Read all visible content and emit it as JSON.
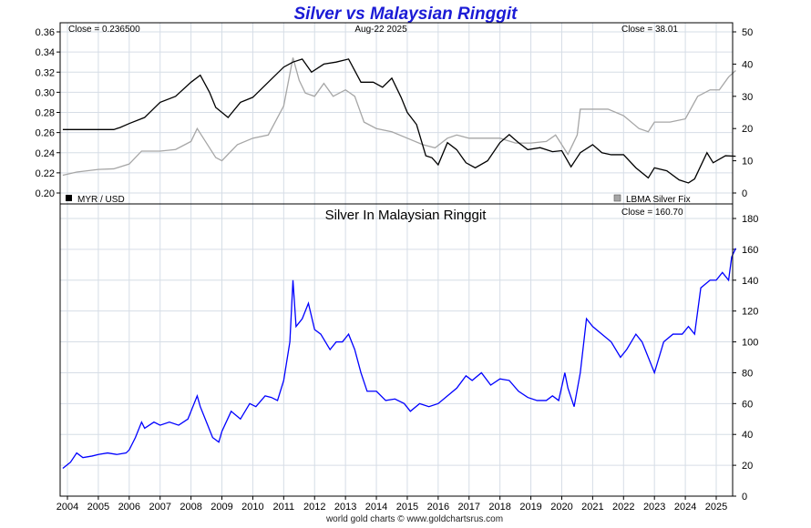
{
  "title": "Silver vs Malaysian Ringgit",
  "footer": "world gold charts © www.goldchartsrus.com",
  "colors": {
    "title": "#1b1bd6",
    "myr": "#000000",
    "silver_usd": "#a6a6a6",
    "silver_myr": "#0000ff",
    "grid": "#d6dde6"
  },
  "chart_data": [
    {
      "type": "line",
      "title": "",
      "date_label": "Aug-22  2025",
      "close_left": "Close = 0.236500",
      "close_right": "Close = 38.01",
      "x_ticks": [
        "2004",
        "2005",
        "2006",
        "2007",
        "2008",
        "2009",
        "2010",
        "2011",
        "2012",
        "2013",
        "2014",
        "2015",
        "2016",
        "2017",
        "2018",
        "2019",
        "2020",
        "2021",
        "2022",
        "2023",
        "2024",
        "2025"
      ],
      "y_left": {
        "ticks": [
          "0.20",
          "0.22",
          "0.24",
          "0.26",
          "0.28",
          "0.30",
          "0.32",
          "0.34",
          "0.36"
        ],
        "range": [
          0.2,
          0.365
        ]
      },
      "y_right": {
        "ticks": [
          "0",
          "10",
          "20",
          "30",
          "40",
          "50"
        ],
        "range": [
          -2,
          51
        ]
      },
      "grid": true,
      "legend": {
        "left": "MYR / USD",
        "right": "LBMA Silver Fix"
      },
      "series": [
        {
          "name": "MYR / USD",
          "axis": "left",
          "x": [
            2003.85,
            2005.0,
            2005.5,
            2005.7,
            2006.0,
            2006.5,
            2007.0,
            2007.5,
            2008.0,
            2008.3,
            2008.6,
            2008.8,
            2009.2,
            2009.6,
            2010.0,
            2010.5,
            2011.0,
            2011.3,
            2011.6,
            2011.9,
            2012.3,
            2012.7,
            2013.1,
            2013.5,
            2013.9,
            2014.2,
            2014.5,
            2014.8,
            2015.0,
            2015.3,
            2015.6,
            2015.8,
            2016.0,
            2016.3,
            2016.6,
            2016.9,
            2017.2,
            2017.6,
            2018.0,
            2018.3,
            2018.6,
            2018.9,
            2019.3,
            2019.7,
            2020.0,
            2020.3,
            2020.6,
            2021.0,
            2021.3,
            2021.6,
            2022.0,
            2022.4,
            2022.8,
            2023.0,
            2023.4,
            2023.8,
            2024.1,
            2024.3,
            2024.7,
            2024.9,
            2025.3,
            2025.63
          ],
          "y": [
            0.263,
            0.263,
            0.263,
            0.265,
            0.269,
            0.275,
            0.29,
            0.296,
            0.31,
            0.317,
            0.3,
            0.285,
            0.275,
            0.29,
            0.295,
            0.31,
            0.325,
            0.33,
            0.333,
            0.32,
            0.328,
            0.33,
            0.333,
            0.31,
            0.31,
            0.305,
            0.314,
            0.295,
            0.28,
            0.268,
            0.237,
            0.235,
            0.228,
            0.25,
            0.243,
            0.23,
            0.225,
            0.232,
            0.25,
            0.258,
            0.25,
            0.243,
            0.245,
            0.241,
            0.242,
            0.226,
            0.24,
            0.248,
            0.24,
            0.238,
            0.238,
            0.225,
            0.215,
            0.225,
            0.222,
            0.213,
            0.21,
            0.214,
            0.24,
            0.23,
            0.237,
            0.2365
          ]
        },
        {
          "name": "LBMA Silver Fix",
          "axis": "right",
          "x": [
            2003.85,
            2004.3,
            2005.0,
            2005.5,
            2006.0,
            2006.4,
            2007.0,
            2007.5,
            2008.0,
            2008.2,
            2008.8,
            2009.0,
            2009.5,
            2010.0,
            2010.5,
            2011.0,
            2011.3,
            2011.5,
            2011.7,
            2012.0,
            2012.3,
            2012.6,
            2013.0,
            2013.3,
            2013.6,
            2014.0,
            2014.5,
            2015.0,
            2015.5,
            2015.9,
            2016.3,
            2016.6,
            2017.0,
            2017.5,
            2018.0,
            2018.5,
            2019.0,
            2019.5,
            2019.8,
            2020.2,
            2020.5,
            2020.6,
            2021.0,
            2021.5,
            2022.0,
            2022.5,
            2022.8,
            2023.0,
            2023.5,
            2024.0,
            2024.4,
            2024.8,
            2025.1,
            2025.4,
            2025.63
          ],
          "y": [
            5.5,
            6.5,
            7.3,
            7.5,
            9,
            13,
            13,
            13.5,
            16,
            20,
            11,
            10,
            15,
            17,
            18,
            27,
            42,
            35,
            31,
            30,
            34,
            30,
            32,
            30,
            22,
            20,
            19,
            17,
            15,
            14,
            17,
            18,
            17,
            17,
            17,
            15.5,
            15.5,
            16,
            18,
            12,
            18,
            26,
            26,
            26,
            24,
            20,
            19,
            22,
            22,
            23,
            30,
            32,
            32,
            36,
            38
          ]
        },
        {
          "name": "",
          "axis": "right",
          "x": [
            2003.85,
            2004.3,
            2005.0,
            2005.5,
            2006.0,
            2006.3,
            2006.8,
            2007.0,
            2007.5,
            2008.0,
            2008.3,
            2008.8,
            2009.0,
            2009.5,
            2010.0,
            2010.5,
            2011.0,
            2011.3,
            2011.5,
            2011.8,
            2012.0,
            2012.5,
            2013.0,
            2013.5,
            2014.0,
            2014.5,
            2015.0,
            2015.5,
            2016.0,
            2016.5,
            2017.0,
            2017.5,
            2018.0,
            2018.5,
            2019.0,
            2019.5,
            2019.8,
            2020.2,
            2020.5,
            2020.7,
            2021.0,
            2021.3,
            2021.6,
            2022.0,
            2022.4,
            2022.8,
            2023.0,
            2023.5,
            2024.0,
            2024.4,
            2024.8,
            2025.1,
            2025.4,
            2025.63
          ],
          "y": [
            5.5,
            6.5,
            7.3,
            7.5,
            9,
            13,
            12,
            13,
            13.5,
            16,
            20,
            11,
            10,
            15,
            17,
            18,
            27,
            42,
            35,
            31,
            30,
            34,
            30,
            25,
            22,
            19,
            17,
            15,
            14,
            17,
            18,
            17,
            17,
            15.5,
            15.5,
            16,
            18,
            12,
            18,
            26,
            26,
            27,
            24,
            25,
            24,
            19,
            22,
            22,
            23,
            30,
            32,
            32,
            36,
            38
          ]
        }
      ]
    },
    {
      "type": "line",
      "title": "Silver In Malaysian Ringgit",
      "close": "Close = 160.70",
      "x_ticks": [
        "2004",
        "2005",
        "2006",
        "2007",
        "2008",
        "2009",
        "2010",
        "2011",
        "2012",
        "2013",
        "2014",
        "2015",
        "2016",
        "2017",
        "2018",
        "2019",
        "2020",
        "2021",
        "2022",
        "2023",
        "2024",
        "2025"
      ],
      "y_right": {
        "ticks": [
          "0",
          "20",
          "40",
          "60",
          "80",
          "100",
          "120",
          "140",
          "160",
          "180"
        ],
        "range": [
          0,
          180
        ]
      },
      "grid": true,
      "series": [
        {
          "name": "",
          "x": [
            2003.85,
            2004.1,
            2004.3,
            2004.5,
            2004.8,
            2005.0,
            2005.3,
            2005.6,
            2005.9,
            2006.0,
            2006.2,
            2006.4,
            2006.5,
            2006.8,
            2007.0,
            2007.3,
            2007.6,
            2007.9,
            2008.0,
            2008.2,
            2008.3,
            2008.5,
            2008.7,
            2008.9,
            2009.0,
            2009.3,
            2009.6,
            2009.9,
            2010.1,
            2010.4,
            2010.6,
            2010.8,
            2011.0,
            2011.2,
            2011.3,
            2011.4,
            2011.6,
            2011.8,
            2012.0,
            2012.2,
            2012.5,
            2012.7,
            2012.9,
            2013.1,
            2013.3,
            2013.5,
            2013.7,
            2014.0,
            2014.3,
            2014.6,
            2014.9,
            2015.1,
            2015.4,
            2015.7,
            2016.0,
            2016.3,
            2016.6,
            2016.9,
            2017.1,
            2017.4,
            2017.7,
            2018.0,
            2018.3,
            2018.6,
            2018.9,
            2019.2,
            2019.5,
            2019.7,
            2019.9,
            2020.1,
            2020.2,
            2020.4,
            2020.6,
            2020.8,
            2021.0,
            2021.3,
            2021.6,
            2021.9,
            2022.1,
            2022.4,
            2022.6,
            2022.8,
            2023.0,
            2023.3,
            2023.6,
            2023.9,
            2024.1,
            2024.3,
            2024.5,
            2024.8,
            2025.0,
            2025.2,
            2025.4,
            2025.5,
            2025.63
          ],
          "y": [
            18,
            22,
            28,
            25,
            26,
            27,
            28,
            27,
            28,
            30,
            38,
            48,
            44,
            48,
            46,
            48,
            46,
            50,
            55,
            65,
            58,
            48,
            38,
            35,
            42,
            55,
            50,
            60,
            58,
            65,
            64,
            62,
            75,
            100,
            140,
            110,
            115,
            125,
            108,
            105,
            95,
            100,
            100,
            105,
            95,
            80,
            68,
            68,
            62,
            63,
            60,
            55,
            60,
            58,
            60,
            65,
            70,
            78,
            75,
            80,
            72,
            76,
            75,
            68,
            64,
            62,
            62,
            65,
            62,
            80,
            70,
            58,
            80,
            115,
            110,
            105,
            100,
            90,
            95,
            105,
            100,
            90,
            80,
            100,
            105,
            105,
            110,
            105,
            135,
            140,
            140,
            145,
            140,
            155,
            160.7
          ]
        }
      ]
    }
  ]
}
